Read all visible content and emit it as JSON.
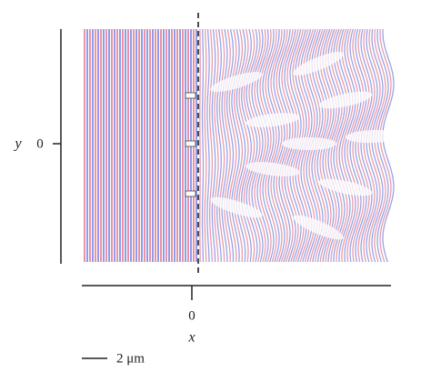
{
  "axes": {
    "y_label": "y",
    "y_tick": "0",
    "x_tick": "0",
    "x_label": "x"
  },
  "scale_bar": {
    "label": "2 μm"
  }
}
